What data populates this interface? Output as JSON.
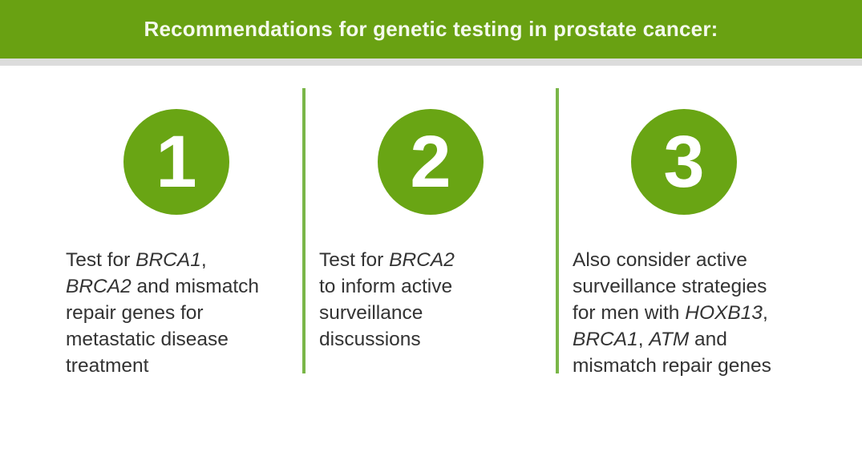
{
  "title": "Recommendations for genetic testing in prostate cancer:",
  "colors": {
    "header": "#69a112",
    "circle": "#69a514",
    "divider": "#7ab648",
    "text": "#333333"
  },
  "columns": [
    {
      "number": "1",
      "lines": [
        [
          {
            "t": "Test for ",
            "i": false
          },
          {
            "t": "BRCA1",
            "i": true
          },
          {
            "t": ",",
            "i": false
          }
        ],
        [
          {
            "t": "BRCA2",
            "i": true
          },
          {
            "t": " and mismatch",
            "i": false
          }
        ],
        [
          {
            "t": "repair genes for",
            "i": false
          }
        ],
        [
          {
            "t": "metastatic disease",
            "i": false
          }
        ],
        [
          {
            "t": "treatment",
            "i": false
          }
        ]
      ]
    },
    {
      "number": "2",
      "lines": [
        [
          {
            "t": "Test for ",
            "i": false
          },
          {
            "t": "BRCA2",
            "i": true
          }
        ],
        [
          {
            "t": "to inform active",
            "i": false
          }
        ],
        [
          {
            "t": "surveillance",
            "i": false
          }
        ],
        [
          {
            "t": "discussions",
            "i": false
          }
        ]
      ]
    },
    {
      "number": "3",
      "lines": [
        [
          {
            "t": "Also consider active",
            "i": false
          }
        ],
        [
          {
            "t": "surveillance strategies",
            "i": false
          }
        ],
        [
          {
            "t": "for men with ",
            "i": false
          },
          {
            "t": "HOXB13",
            "i": true
          },
          {
            "t": ",",
            "i": false
          }
        ],
        [
          {
            "t": "BRCA1",
            "i": true
          },
          {
            "t": ", ",
            "i": false
          },
          {
            "t": "ATM",
            "i": true
          },
          {
            "t": " and",
            "i": false
          }
        ],
        [
          {
            "t": "mismatch repair genes",
            "i": false
          }
        ]
      ]
    }
  ]
}
